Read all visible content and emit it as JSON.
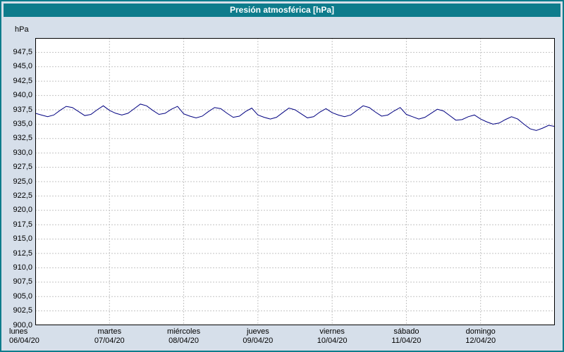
{
  "window": {
    "title": "Presión atmosférica [hPa]"
  },
  "colors": {
    "titlebar": "#0e7c8c",
    "window_border": "#0e7c8c",
    "background": "#d6dfea",
    "plot_background": "#ffffff",
    "gridline": "#c3c3c3",
    "line": "#000080"
  },
  "chart_data": {
    "type": "line",
    "title": "Presión atmosférica [hPa]",
    "ylabel": "hPa",
    "xlabel": "",
    "ylim": [
      900,
      950
    ],
    "ytick_step": 2.5,
    "grid": true,
    "legend": "none",
    "ytick_values": [
      947.5,
      945.0,
      942.5,
      940.0,
      937.5,
      935.0,
      932.5,
      930.0,
      927.5,
      925.0,
      922.5,
      920.0,
      917.5,
      915.0,
      912.5,
      910.0,
      907.5,
      905.0,
      902.5,
      900.0
    ],
    "ytick_labels": [
      "947,5",
      "945,0",
      "942,5",
      "940,0",
      "937,5",
      "935,0",
      "932,5",
      "930,0",
      "927,5",
      "925,0",
      "922,5",
      "920,0",
      "917,5",
      "915,0",
      "912,5",
      "910,0",
      "907,5",
      "905,0",
      "902,5",
      "900,0"
    ],
    "x_days": [
      {
        "name": "lunes",
        "date": "06/04/20"
      },
      {
        "name": "martes",
        "date": "07/04/20"
      },
      {
        "name": "miércoles",
        "date": "08/04/20"
      },
      {
        "name": "jueves",
        "date": "09/04/20"
      },
      {
        "name": "viernes",
        "date": "10/04/20"
      },
      {
        "name": "sábado",
        "date": "11/04/20"
      },
      {
        "name": "domingo",
        "date": "12/04/20"
      }
    ],
    "series": [
      {
        "name": "Presión atmosférica",
        "color": "#000080",
        "samples_per_day": 12,
        "values": [
          936.9,
          936.6,
          936.3,
          936.6,
          937.4,
          938.1,
          937.9,
          937.2,
          936.5,
          936.7,
          937.5,
          938.2,
          937.4,
          936.9,
          936.6,
          936.9,
          937.7,
          938.5,
          938.2,
          937.4,
          936.7,
          936.9,
          937.6,
          938.1,
          936.8,
          936.4,
          936.1,
          936.4,
          937.2,
          937.9,
          937.7,
          936.9,
          936.2,
          936.4,
          937.2,
          937.8,
          936.6,
          936.2,
          935.9,
          936.2,
          937.0,
          937.8,
          937.5,
          936.8,
          936.1,
          936.3,
          937.1,
          937.7,
          937.0,
          936.6,
          936.3,
          936.6,
          937.4,
          938.2,
          937.9,
          937.1,
          936.4,
          936.6,
          937.3,
          937.9,
          936.7,
          936.3,
          935.9,
          936.2,
          936.9,
          937.6,
          937.3,
          936.5,
          935.7,
          935.8,
          936.3,
          936.6,
          935.9,
          935.4,
          935.0,
          935.2,
          935.8,
          936.3,
          935.9,
          935.0,
          934.2,
          933.9,
          934.3,
          934.8,
          934.6
        ]
      }
    ]
  }
}
